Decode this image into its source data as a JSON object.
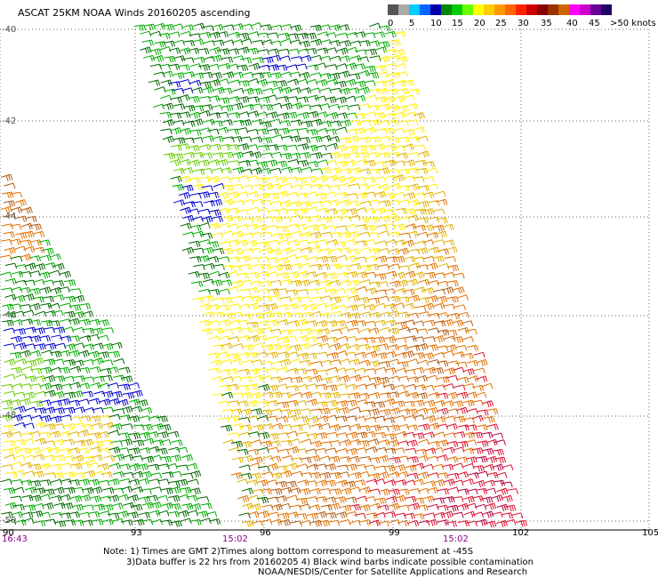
{
  "title": "ASCAT 25KM NOAA Winds 20160205 ascending",
  "legend": {
    "labels": [
      "0",
      "5",
      "10",
      "15",
      "20",
      "25",
      "30",
      "35",
      "40",
      "45",
      ">50 knots"
    ],
    "colors": [
      "#555555",
      "#aaaaaa",
      "#00ccff",
      "#0066ff",
      "#0000aa",
      "#008800",
      "#00cc00",
      "#66ff00",
      "#ffff00",
      "#ffcc00",
      "#ff9900",
      "#ff6600",
      "#ff2200",
      "#cc0000",
      "#880000",
      "#993300",
      "#cc6600",
      "#ff00ff",
      "#cc00cc",
      "#660099",
      "#220066"
    ]
  },
  "grid": {
    "lat_labels": [
      "-40",
      "-42",
      "-44",
      "-46",
      "-48",
      "-50"
    ],
    "lon_labels": [
      "90",
      "93",
      "96",
      "99",
      "102",
      "105"
    ]
  },
  "pass_times": [
    "16:43",
    "15:02",
    "15:02"
  ],
  "notes": [
    "Note: 1) Times are GMT 2)Times along bottom correspond to measurement at -45S",
    "3)Data buffer is 22 hrs from 20160205 4) Black wind barbs indicate possible contamination",
    "NOAA/NESDIS/Center for Satellite Applications and Research"
  ],
  "barb_colors": {
    "blue": "#0000cc",
    "dark_green": "#006600",
    "green": "#00aa00",
    "light_green": "#66cc00",
    "yellow": "#ffee00",
    "gold": "#e0b000",
    "orange": "#e07000",
    "brown": "#b05a10",
    "red": "#dd1030",
    "crimson": "#b00040"
  }
}
